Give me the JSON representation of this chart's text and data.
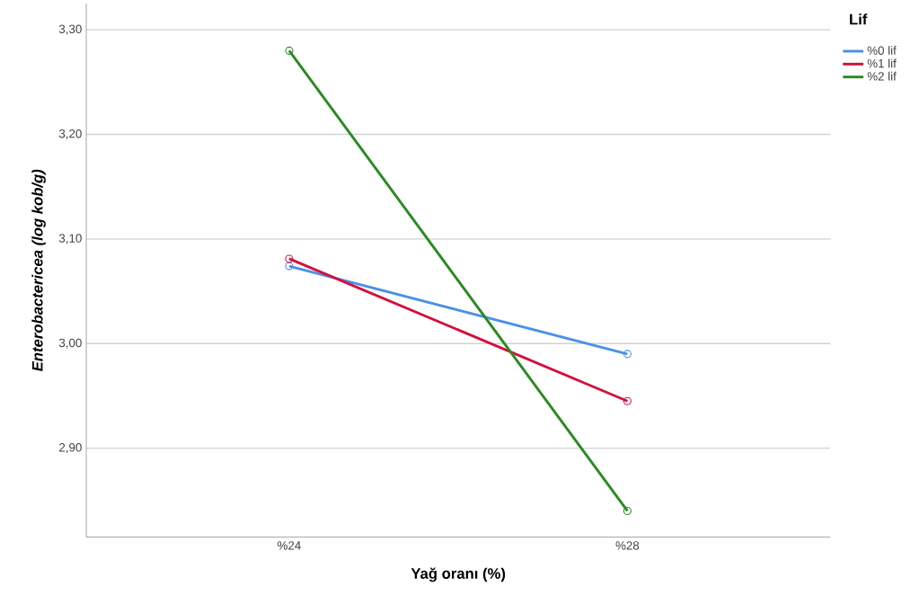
{
  "chart_data": {
    "type": "line",
    "xlabel": "Yağ oranı (%)",
    "ylabel": "Enterobactericea (log kob/g)",
    "legend_title": "Lif",
    "categories": [
      "%24",
      "%28"
    ],
    "series": [
      {
        "name": "%0 lif",
        "color": "#4a90e8",
        "values": [
          3.074,
          2.99
        ]
      },
      {
        "name": "%1 lif",
        "color": "#d2103c",
        "values": [
          3.081,
          2.945
        ]
      },
      {
        "name": "%2 lif",
        "color": "#2a8a22",
        "values": [
          3.28,
          2.84
        ]
      }
    ],
    "ylim": [
      2.815,
      3.325
    ],
    "yticks": [
      {
        "value": 2.9,
        "label": "2,90"
      },
      {
        "value": 3.0,
        "label": "3,00"
      },
      {
        "value": 3.1,
        "label": "3,10"
      },
      {
        "value": 3.2,
        "label": "3,20"
      },
      {
        "value": 3.3,
        "label": "3,30"
      }
    ],
    "grid": "y",
    "legend": "top right",
    "marker": "circle",
    "line_style": "solid"
  }
}
